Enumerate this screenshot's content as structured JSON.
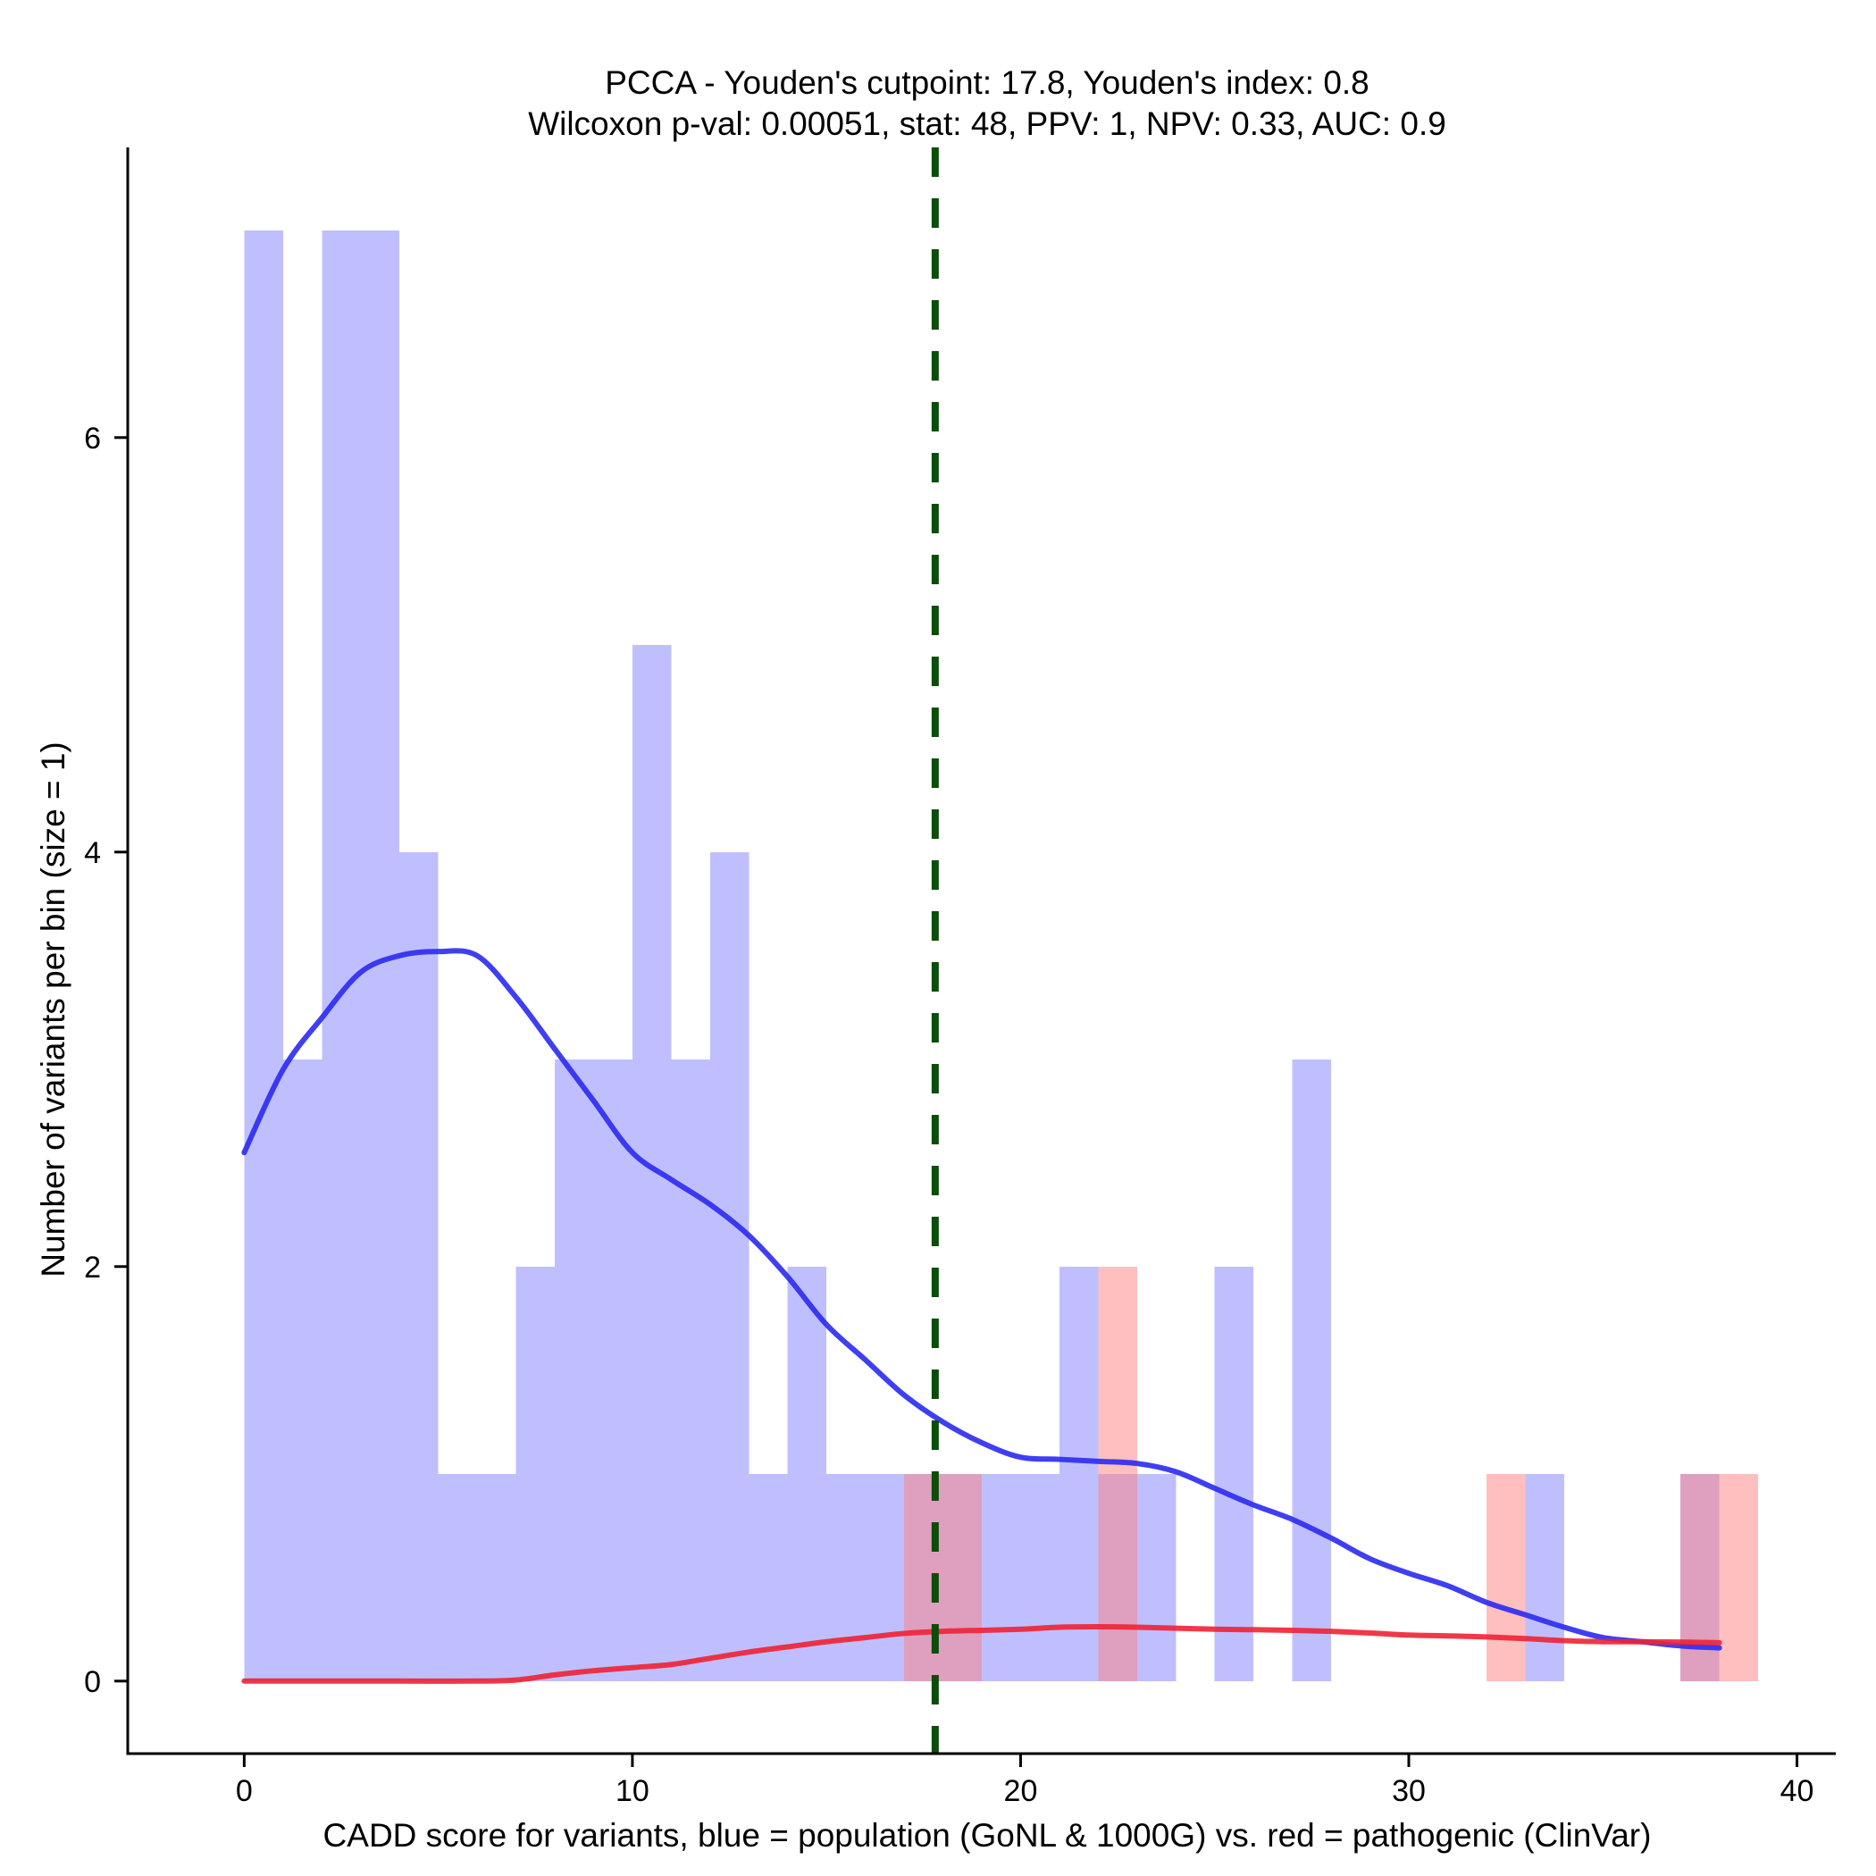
{
  "chart_data": {
    "type": "bar",
    "title_line1": "PCCA - Youden's cutpoint: 17.8, Youden's index: 0.8",
    "title_line2": "Wilcoxon p-val: 0.00051, stat: 48, PPV: 1, NPV: 0.33, AUC: 0.9",
    "xlabel": "CADD score for variants, blue = population (GoNL & 1000G) vs. red = pathogenic (ClinVar)",
    "ylabel": "Number of variants per bin (size = 1)",
    "xlim": [
      -3,
      41
    ],
    "ylim": [
      -0.35,
      7.4
    ],
    "x_ticks": [
      0,
      10,
      20,
      30,
      40
    ],
    "y_ticks": [
      0,
      2,
      4,
      6
    ],
    "cutpoint": 17.8,
    "colors": {
      "population_fill": "#8080ff",
      "pathogenic_fill": "#ff8080",
      "population_line": "#2a2af0",
      "pathogenic_line": "#ee2233",
      "cutpoint_line": "#0b4d0b"
    },
    "series": [
      {
        "name": "population (GoNL & 1000G)",
        "bin_width": 1,
        "bins": [
          {
            "start": 0,
            "count": 7
          },
          {
            "start": 1,
            "count": 3
          },
          {
            "start": 2,
            "count": 7
          },
          {
            "start": 3,
            "count": 7
          },
          {
            "start": 4,
            "count": 4
          },
          {
            "start": 5,
            "count": 1
          },
          {
            "start": 6,
            "count": 1
          },
          {
            "start": 7,
            "count": 2
          },
          {
            "start": 8,
            "count": 3
          },
          {
            "start": 9,
            "count": 3
          },
          {
            "start": 10,
            "count": 5
          },
          {
            "start": 11,
            "count": 3
          },
          {
            "start": 12,
            "count": 4
          },
          {
            "start": 13,
            "count": 1
          },
          {
            "start": 14,
            "count": 2
          },
          {
            "start": 15,
            "count": 1
          },
          {
            "start": 16,
            "count": 1
          },
          {
            "start": 17,
            "count": 1
          },
          {
            "start": 18,
            "count": 1
          },
          {
            "start": 19,
            "count": 1
          },
          {
            "start": 20,
            "count": 1
          },
          {
            "start": 21,
            "count": 2
          },
          {
            "start": 22,
            "count": 1
          },
          {
            "start": 23,
            "count": 1
          },
          {
            "start": 25,
            "count": 2
          },
          {
            "start": 27,
            "count": 3
          },
          {
            "start": 33,
            "count": 1
          },
          {
            "start": 37,
            "count": 1
          }
        ],
        "density_curve": [
          [
            0,
            2.55
          ],
          [
            1,
            2.95
          ],
          [
            2,
            3.2
          ],
          [
            3,
            3.42
          ],
          [
            4,
            3.5
          ],
          [
            5,
            3.52
          ],
          [
            6,
            3.5
          ],
          [
            7,
            3.3
          ],
          [
            8,
            3.05
          ],
          [
            9,
            2.8
          ],
          [
            10,
            2.55
          ],
          [
            11,
            2.42
          ],
          [
            12,
            2.3
          ],
          [
            13,
            2.15
          ],
          [
            14,
            1.95
          ],
          [
            15,
            1.72
          ],
          [
            16,
            1.55
          ],
          [
            17,
            1.38
          ],
          [
            18,
            1.25
          ],
          [
            19,
            1.15
          ],
          [
            20,
            1.08
          ],
          [
            21,
            1.07
          ],
          [
            22,
            1.06
          ],
          [
            23,
            1.05
          ],
          [
            24,
            1.01
          ],
          [
            25,
            0.93
          ],
          [
            26,
            0.85
          ],
          [
            27,
            0.78
          ],
          [
            28,
            0.69
          ],
          [
            29,
            0.59
          ],
          [
            30,
            0.52
          ],
          [
            31,
            0.46
          ],
          [
            32,
            0.38
          ],
          [
            33,
            0.32
          ],
          [
            34,
            0.26
          ],
          [
            35,
            0.21
          ],
          [
            36,
            0.19
          ],
          [
            37,
            0.17
          ],
          [
            38,
            0.16
          ]
        ]
      },
      {
        "name": "pathogenic (ClinVar)",
        "bin_width": 1,
        "bins": [
          {
            "start": 17,
            "count": 1
          },
          {
            "start": 18,
            "count": 1
          },
          {
            "start": 22,
            "count": 2
          },
          {
            "start": 32,
            "count": 1
          },
          {
            "start": 37,
            "count": 1
          },
          {
            "start": 38,
            "count": 1
          }
        ],
        "density_curve": [
          [
            0,
            0.0
          ],
          [
            2,
            0.0
          ],
          [
            4,
            0.0
          ],
          [
            6,
            0.0
          ],
          [
            7,
            0.005
          ],
          [
            8,
            0.03
          ],
          [
            9,
            0.05
          ],
          [
            10,
            0.065
          ],
          [
            11,
            0.08
          ],
          [
            12,
            0.11
          ],
          [
            13,
            0.14
          ],
          [
            14,
            0.165
          ],
          [
            15,
            0.19
          ],
          [
            16,
            0.21
          ],
          [
            17,
            0.23
          ],
          [
            18,
            0.24
          ],
          [
            19,
            0.245
          ],
          [
            20,
            0.25
          ],
          [
            21,
            0.26
          ],
          [
            22,
            0.262
          ],
          [
            23,
            0.26
          ],
          [
            24,
            0.255
          ],
          [
            25,
            0.25
          ],
          [
            26,
            0.248
          ],
          [
            27,
            0.245
          ],
          [
            28,
            0.24
          ],
          [
            29,
            0.232
          ],
          [
            30,
            0.222
          ],
          [
            31,
            0.218
          ],
          [
            32,
            0.213
          ],
          [
            33,
            0.205
          ],
          [
            34,
            0.195
          ],
          [
            35,
            0.19
          ],
          [
            36,
            0.19
          ],
          [
            37,
            0.188
          ],
          [
            38,
            0.185
          ]
        ]
      }
    ]
  }
}
